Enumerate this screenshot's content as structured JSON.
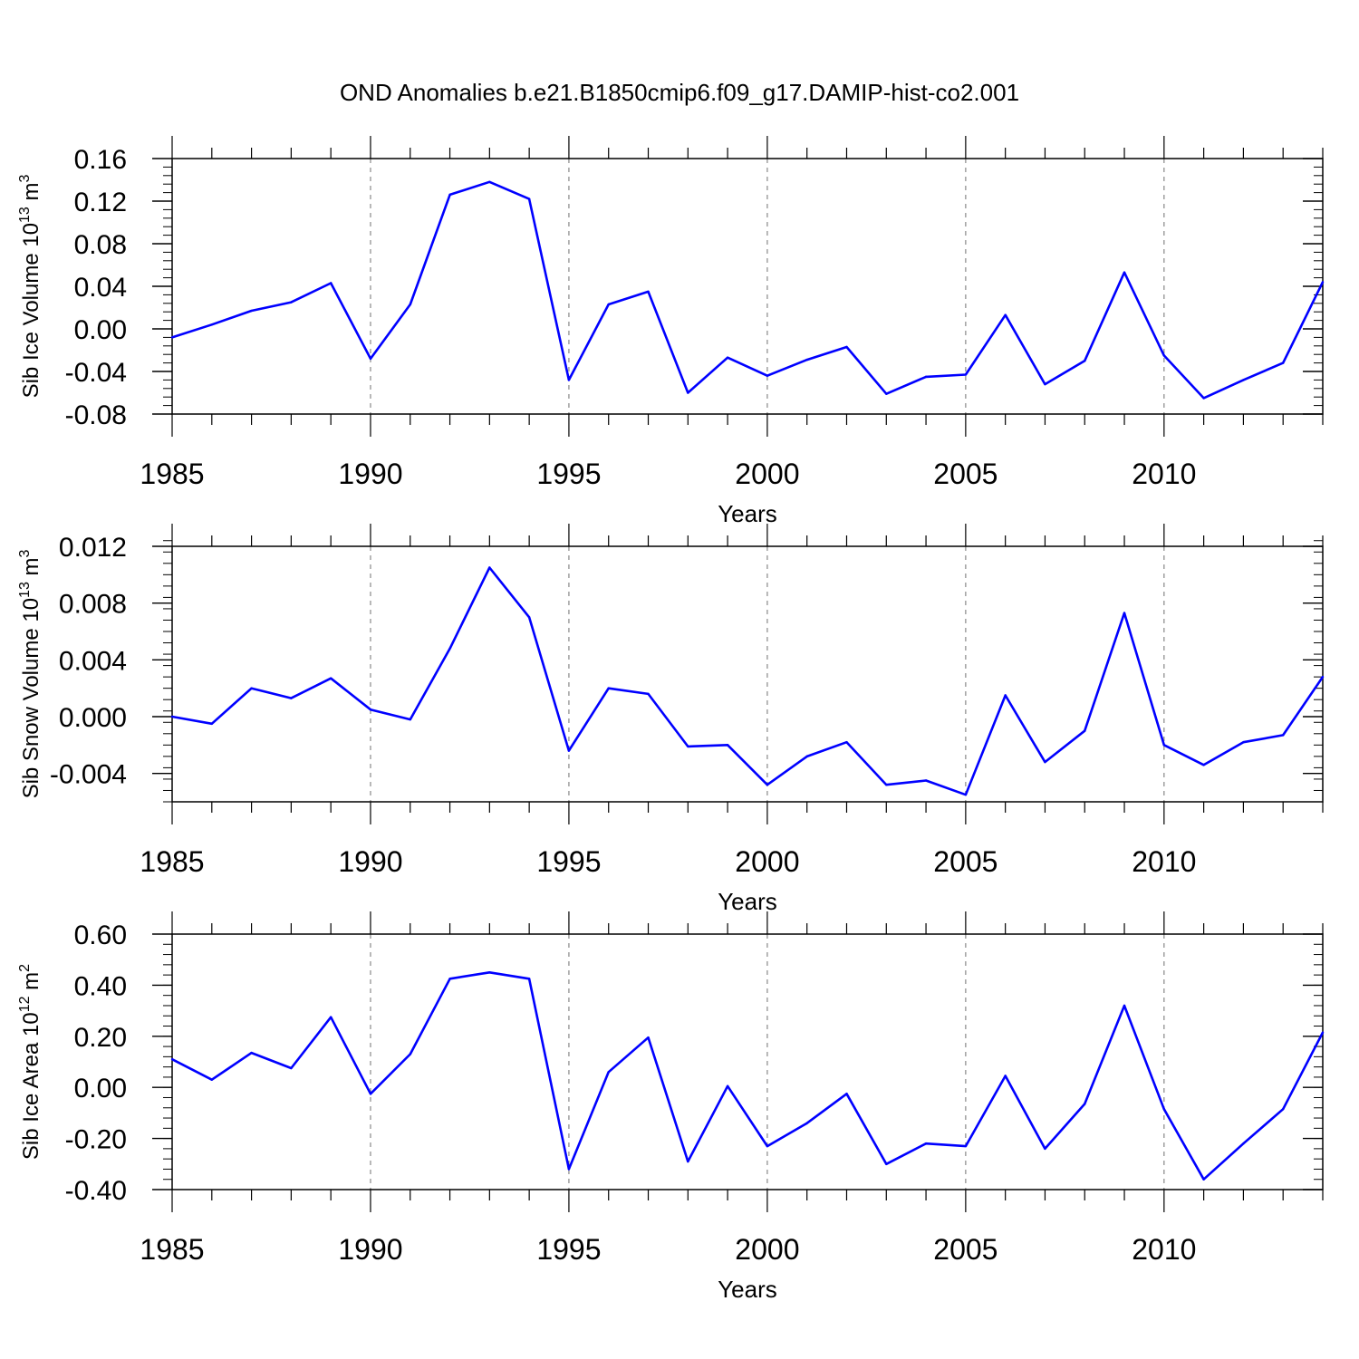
{
  "title": "OND Anomalies b.e21.B1850cmip6.f09_g17.DAMIP-hist-co2.001",
  "chart_data": [
    {
      "type": "line",
      "x": [
        1985,
        1986,
        1987,
        1988,
        1989,
        1990,
        1991,
        1992,
        1993,
        1994,
        1995,
        1996,
        1997,
        1998,
        1999,
        2000,
        2001,
        2002,
        2003,
        2004,
        2005,
        2006,
        2007,
        2008,
        2009,
        2010,
        2011,
        2012,
        2013,
        2014
      ],
      "series": [
        {
          "name": "Sib Ice Volume",
          "color": "#0000ff",
          "values": [
            -0.008,
            0.004,
            0.017,
            0.025,
            0.043,
            -0.028,
            0.023,
            0.126,
            0.138,
            0.122,
            -0.048,
            0.023,
            0.035,
            -0.06,
            -0.027,
            -0.044,
            -0.029,
            -0.017,
            -0.061,
            -0.045,
            -0.043,
            0.013,
            -0.052,
            -0.03,
            0.053,
            -0.025,
            -0.065,
            -0.048,
            -0.032,
            0.044
          ]
        }
      ],
      "xlabel": "Years",
      "ylabel_main": "Sib Ice Volume 10",
      "ylabel_sup": "13",
      "ylabel_unit": " m",
      "ylabel_unit_sup": "3",
      "xlim": [
        1985,
        2014
      ],
      "ylim": [
        -0.08,
        0.16
      ],
      "yticks": [
        -0.08,
        -0.04,
        0.0,
        0.04,
        0.08,
        0.12,
        0.16
      ],
      "ytick_labels": [
        "-0.08",
        "-0.04",
        "0.00",
        "0.04",
        "0.08",
        "0.12",
        "0.16"
      ],
      "yminor_step": 0.008,
      "xticks": [
        1985,
        1990,
        1995,
        2000,
        2005,
        2010
      ],
      "xtick_labels": [
        "1985",
        "1990",
        "1995",
        "2000",
        "2005",
        "2010"
      ],
      "vgrid": [
        1990,
        1995,
        2000,
        2005,
        2010
      ]
    },
    {
      "type": "line",
      "x": [
        1985,
        1986,
        1987,
        1988,
        1989,
        1990,
        1991,
        1992,
        1993,
        1994,
        1995,
        1996,
        1997,
        1998,
        1999,
        2000,
        2001,
        2002,
        2003,
        2004,
        2005,
        2006,
        2007,
        2008,
        2009,
        2010,
        2011,
        2012,
        2013,
        2014
      ],
      "series": [
        {
          "name": "Sib Snow Volume",
          "color": "#0000ff",
          "values": [
            0.0,
            -0.0005,
            0.002,
            0.0013,
            0.0027,
            0.0005,
            -0.0002,
            0.0048,
            0.0105,
            0.007,
            -0.0024,
            0.002,
            0.0016,
            -0.0021,
            -0.002,
            -0.0048,
            -0.0028,
            -0.0018,
            -0.0048,
            -0.0045,
            -0.0055,
            0.0015,
            -0.0032,
            -0.001,
            0.0073,
            -0.002,
            -0.0034,
            -0.0018,
            -0.0013,
            0.0028
          ]
        }
      ],
      "xlabel": "Years",
      "ylabel_main": "Sib Snow Volume 10",
      "ylabel_sup": "13",
      "ylabel_unit": " m",
      "ylabel_unit_sup": "3",
      "xlim": [
        1985,
        2014
      ],
      "ylim": [
        -0.006,
        0.012
      ],
      "yticks": [
        -0.004,
        0.0,
        0.004,
        0.008,
        0.012
      ],
      "ytick_labels": [
        "-0.004",
        "0.000",
        "0.004",
        "0.008",
        "0.012"
      ],
      "yminor_step": 0.0008,
      "xticks": [
        1985,
        1990,
        1995,
        2000,
        2005,
        2010
      ],
      "xtick_labels": [
        "1985",
        "1990",
        "1995",
        "2000",
        "2005",
        "2010"
      ],
      "vgrid": [
        1990,
        1995,
        2000,
        2005,
        2010
      ]
    },
    {
      "type": "line",
      "x": [
        1985,
        1986,
        1987,
        1988,
        1989,
        1990,
        1991,
        1992,
        1993,
        1994,
        1995,
        1996,
        1997,
        1998,
        1999,
        2000,
        2001,
        2002,
        2003,
        2004,
        2005,
        2006,
        2007,
        2008,
        2009,
        2010,
        2011,
        2012,
        2013,
        2014
      ],
      "series": [
        {
          "name": "Sib Ice Area",
          "color": "#0000ff",
          "values": [
            0.11,
            0.03,
            0.135,
            0.075,
            0.275,
            -0.025,
            0.13,
            0.425,
            0.45,
            0.425,
            -0.32,
            0.06,
            0.195,
            -0.29,
            0.005,
            -0.23,
            -0.14,
            -0.025,
            -0.3,
            -0.22,
            -0.23,
            0.045,
            -0.24,
            -0.065,
            0.32,
            -0.085,
            -0.36,
            -0.22,
            -0.085,
            0.215
          ]
        }
      ],
      "xlabel": "Years",
      "ylabel_main": "Sib Ice Area 10",
      "ylabel_sup": "12",
      "ylabel_unit": " m",
      "ylabel_unit_sup": "2",
      "xlim": [
        1985,
        2014
      ],
      "ylim": [
        -0.4,
        0.6
      ],
      "yticks": [
        -0.4,
        -0.2,
        0.0,
        0.2,
        0.4,
        0.6
      ],
      "ytick_labels": [
        "-0.40",
        "-0.20",
        "0.00",
        "0.20",
        "0.40",
        "0.60"
      ],
      "yminor_step": 0.04,
      "xticks": [
        1985,
        1990,
        1995,
        2000,
        2005,
        2010
      ],
      "xtick_labels": [
        "1985",
        "1990",
        "1995",
        "2000",
        "2005",
        "2010"
      ],
      "vgrid": [
        1990,
        1995,
        2000,
        2005,
        2010
      ]
    }
  ]
}
